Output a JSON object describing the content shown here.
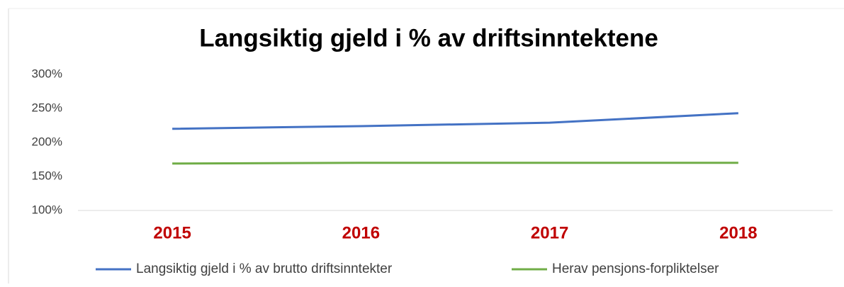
{
  "chart_data": {
    "type": "line",
    "title": "Langsiktig gjeld i % av driftsinntektene",
    "categories": [
      "2015",
      "2016",
      "2017",
      "2018"
    ],
    "series": [
      {
        "name": "Langsiktig gjeld i % av brutto driftsinntekter",
        "color": "#4472c4",
        "values": [
          220,
          224,
          229,
          243
        ]
      },
      {
        "name": "Herav pensjons-forpliktelser",
        "color": "#70ad47",
        "values": [
          169,
          170,
          170,
          170
        ]
      }
    ],
    "ylim": [
      100,
      300
    ],
    "yticks": [
      {
        "value": 100,
        "label": "100%"
      },
      {
        "value": 150,
        "label": "150%"
      },
      {
        "value": 200,
        "label": "200%"
      },
      {
        "value": 250,
        "label": "250%"
      },
      {
        "value": 300,
        "label": "300%"
      }
    ],
    "category_color": "#c00000",
    "legend": "bottom"
  }
}
